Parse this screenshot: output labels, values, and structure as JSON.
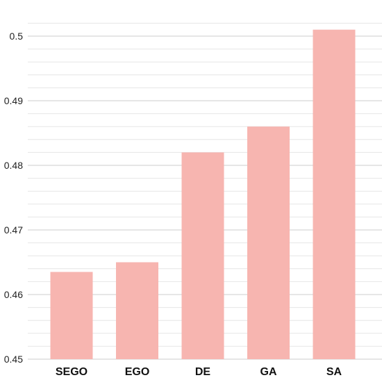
{
  "chart_data": {
    "type": "bar",
    "categories": [
      "SEGO",
      "EGO",
      "DE",
      "GA",
      "SA"
    ],
    "values": [
      0.4635,
      0.465,
      0.482,
      0.486,
      0.501
    ],
    "ylim": [
      0.45,
      0.502
    ],
    "yticks": [
      0.45,
      0.46,
      0.47,
      0.48,
      0.49,
      0.5
    ],
    "ytick_labels": [
      "0.45",
      "0.46",
      "0.47",
      "0.48",
      "0.49",
      "0.5"
    ],
    "grid": true,
    "bar_color": "#f7b5b0",
    "major_grid_color": "#cccccc",
    "minor_grid_color": "#e6e6e6"
  }
}
